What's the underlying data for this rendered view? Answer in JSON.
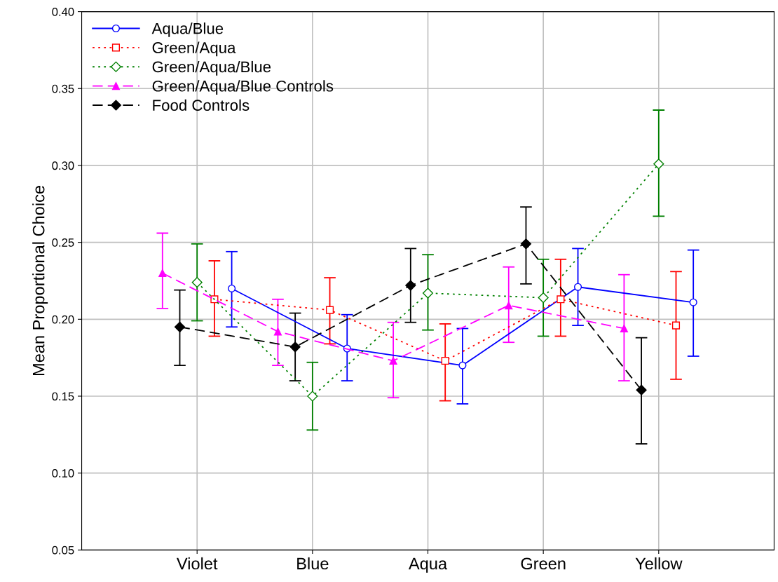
{
  "chart_data": {
    "type": "line",
    "ylabel": "Mean Proportional Choice",
    "categories": [
      "Violet",
      "Blue",
      "Aqua",
      "Green",
      "Yellow"
    ],
    "ylim": [
      0.05,
      0.4
    ],
    "yticks": [
      {
        "value": 0.05,
        "label": "0.05"
      },
      {
        "value": 0.1,
        "label": "0.10"
      },
      {
        "value": 0.15,
        "label": "0.15"
      },
      {
        "value": 0.2,
        "label": "0.20"
      },
      {
        "value": 0.25,
        "label": "0.25"
      },
      {
        "value": 0.3,
        "label": "0.30"
      },
      {
        "value": 0.35,
        "label": "0.35"
      },
      {
        "value": 0.4,
        "label": "0.40"
      }
    ],
    "grid": true,
    "legend": "top left",
    "series": [
      {
        "name": "Aqua/Blue",
        "color": "#0000ff",
        "marker": "circle",
        "line_style": "solid",
        "values": [
          0.22,
          0.181,
          0.17,
          0.221,
          0.211
        ],
        "errors": [
          [
            0.195,
            0.244
          ],
          [
            0.16,
            0.203
          ],
          [
            0.145,
            0.194
          ],
          [
            0.196,
            0.246
          ],
          [
            0.176,
            0.245
          ]
        ]
      },
      {
        "name": "Green/Aqua",
        "color": "#ff0000",
        "marker": "square",
        "line_style": "dotted",
        "values": [
          0.213,
          0.206,
          0.173,
          0.213,
          0.196
        ],
        "errors": [
          [
            0.189,
            0.238
          ],
          [
            0.184,
            0.227
          ],
          [
            0.147,
            0.197
          ],
          [
            0.189,
            0.239
          ],
          [
            0.161,
            0.231
          ]
        ]
      },
      {
        "name": "Green/Aqua/Blue",
        "color": "#008000",
        "marker": "diamond",
        "line_style": "dotted",
        "values": [
          0.224,
          0.15,
          0.217,
          0.214,
          0.301
        ],
        "errors": [
          [
            0.199,
            0.249
          ],
          [
            0.128,
            0.172
          ],
          [
            0.193,
            0.242
          ],
          [
            0.189,
            0.239
          ],
          [
            0.267,
            0.336
          ]
        ]
      },
      {
        "name": "Green/Aqua/Blue Controls",
        "color": "#ff00ff",
        "marker": "triangle",
        "line_style": "dashed",
        "values": [
          0.23,
          0.192,
          0.173,
          0.209,
          0.194
        ],
        "errors": [
          [
            0.207,
            0.256
          ],
          [
            0.17,
            0.213
          ],
          [
            0.149,
            0.198
          ],
          [
            0.185,
            0.234
          ],
          [
            0.16,
            0.229
          ]
        ]
      },
      {
        "name": "Food Controls",
        "color": "#000000",
        "marker": "diamond",
        "line_style": "dashed",
        "values": [
          0.195,
          0.182,
          0.222,
          0.249,
          0.154
        ],
        "errors": [
          [
            0.17,
            0.219
          ],
          [
            0.16,
            0.204
          ],
          [
            0.198,
            0.246
          ],
          [
            0.223,
            0.273
          ],
          [
            0.119,
            0.188
          ]
        ]
      }
    ]
  }
}
